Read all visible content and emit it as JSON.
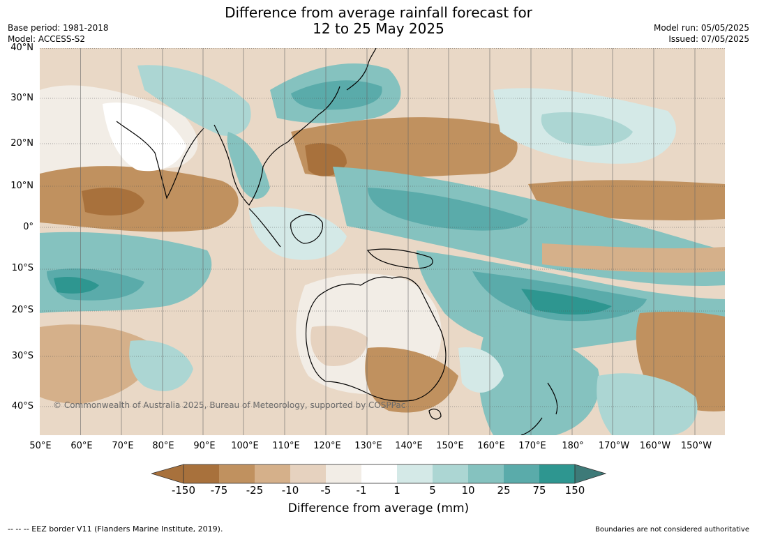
{
  "header": {
    "title_line1": "Difference from average rainfall forecast for",
    "title_line2": "12 to 25 May 2025",
    "base_period": "Base period: 1981-2018",
    "model": "Model: ACCESS-S2",
    "model_run": "Model run: 05/05/2025",
    "issued": "Issued: 07/05/2025"
  },
  "map": {
    "lat_labels": [
      "40°N",
      "30°N",
      "20°N",
      "10°N",
      "0°",
      "10°S",
      "20°S",
      "30°S",
      "40°S"
    ],
    "lon_labels": [
      "50°E",
      "60°E",
      "70°E",
      "80°E",
      "90°E",
      "100°E",
      "110°E",
      "120°E",
      "130°E",
      "140°E",
      "150°E",
      "160°E",
      "170°E",
      "180°",
      "170°W",
      "160°W",
      "150°W"
    ],
    "copyright": "© Commonwealth of Australia 2025, Bureau of Meteorology, supported by COSPPac",
    "colors": {
      "dry_150": "#a8713c",
      "dry_75": "#c0915f",
      "dry_25": "#d5b08a",
      "dry_10": "#e6d2bf",
      "dry_5": "#f2ede6",
      "neutral": "#ffffff",
      "wet_1": "#d4e9e7",
      "wet_5": "#acd6d3",
      "wet_10": "#85c2bf",
      "wet_25": "#5aabaa",
      "wet_75": "#2e9690",
      "wet_150": "#3d7a78"
    }
  },
  "colorbar": {
    "labels": [
      "-150",
      "-75",
      "-25",
      "-10",
      "-5",
      "-1",
      "1",
      "5",
      "10",
      "25",
      "75",
      "150"
    ],
    "title": "Difference from average (mm)"
  },
  "footer": {
    "eez_note": "--  --  -- EEZ border V11 (Flanders Marine Institute, 2019).",
    "boundary_note": "Boundaries are not considered authoritative"
  }
}
